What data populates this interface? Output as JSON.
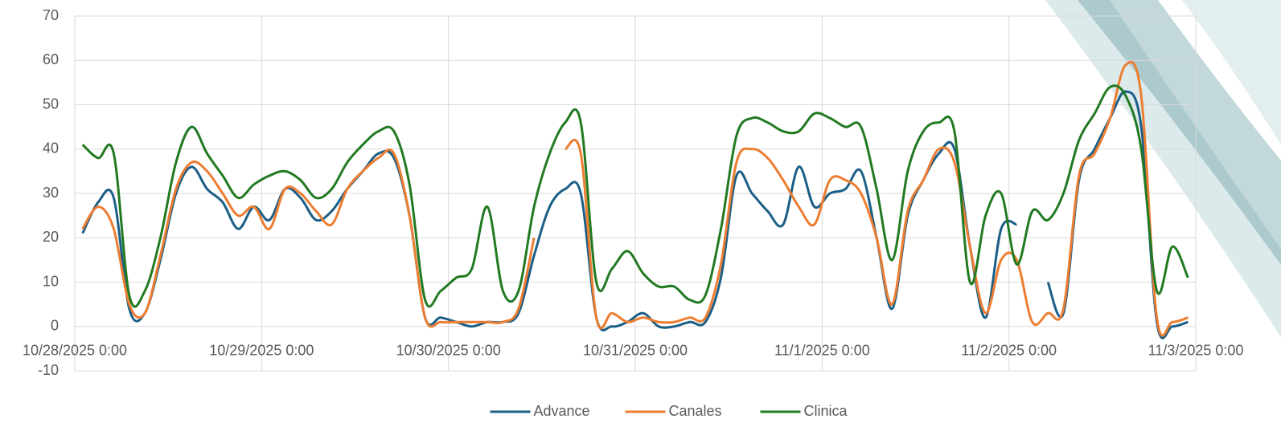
{
  "chart_data": {
    "type": "line",
    "x": [
      "10/28/2025 1:00",
      "10/28/2025 3:00",
      "10/28/2025 5:00",
      "10/28/2025 7:00",
      "10/28/2025 9:00",
      "10/28/2025 11:00",
      "10/28/2025 13:00",
      "10/28/2025 15:00",
      "10/28/2025 17:00",
      "10/28/2025 19:00",
      "10/28/2025 21:00",
      "10/28/2025 23:00",
      "10/29/2025 1:00",
      "10/29/2025 3:00",
      "10/29/2025 5:00",
      "10/29/2025 7:00",
      "10/29/2025 9:00",
      "10/29/2025 11:00",
      "10/29/2025 13:00",
      "10/29/2025 15:00",
      "10/29/2025 17:00",
      "10/29/2025 19:00",
      "10/29/2025 21:00",
      "10/29/2025 23:00",
      "10/30/2025 1:00",
      "10/30/2025 3:00",
      "10/30/2025 5:00",
      "10/30/2025 7:00",
      "10/30/2025 9:00",
      "10/30/2025 11:00",
      "10/30/2025 13:00",
      "10/30/2025 15:00",
      "10/30/2025 17:00",
      "10/30/2025 19:00",
      "10/30/2025 21:00",
      "10/30/2025 23:00",
      "10/31/2025 1:00",
      "10/31/2025 3:00",
      "10/31/2025 5:00",
      "10/31/2025 7:00",
      "10/31/2025 9:00",
      "10/31/2025 11:00",
      "10/31/2025 13:00",
      "10/31/2025 15:00",
      "10/31/2025 17:00",
      "10/31/2025 19:00",
      "10/31/2025 21:00",
      "10/31/2025 23:00",
      "11/1/2025 1:00",
      "11/1/2025 3:00",
      "11/1/2025 5:00",
      "11/1/2025 7:00",
      "11/1/2025 9:00",
      "11/1/2025 11:00",
      "11/1/2025 13:00",
      "11/1/2025 15:00",
      "11/1/2025 17:00",
      "11/1/2025 19:00",
      "11/1/2025 21:00",
      "11/1/2025 23:00",
      "11/2/2025 1:00",
      "11/2/2025 3:00",
      "11/2/2025 5:00",
      "11/2/2025 7:00",
      "11/2/2025 9:00",
      "11/2/2025 11:00",
      "11/2/2025 13:00",
      "11/2/2025 15:00",
      "11/2/2025 17:00",
      "11/2/2025 19:00",
      "11/2/2025 21:00",
      "11/2/2025 23:00"
    ],
    "series": [
      {
        "name": "Advance",
        "color": "#1b5e86",
        "values": [
          21,
          28,
          29,
          4,
          3,
          15,
          30,
          36,
          31,
          28,
          22,
          27,
          24,
          31,
          29,
          24,
          26,
          31,
          35,
          39,
          38,
          25,
          2,
          2,
          1,
          0,
          1,
          1,
          3,
          16,
          27,
          31,
          30,
          2,
          0,
          1,
          3,
          0,
          0,
          1,
          1,
          11,
          34,
          30,
          26,
          23,
          36,
          27,
          30,
          31,
          35,
          20,
          4,
          25,
          33,
          39,
          40,
          18,
          2,
          22,
          23,
          null,
          10,
          3,
          33,
          40,
          47,
          53,
          45,
          1,
          0,
          1
        ]
      },
      {
        "name": "Canales",
        "color": "#ed7d31",
        "values": [
          22,
          27,
          22,
          5,
          3,
          16,
          31,
          37,
          35,
          30,
          25,
          27,
          22,
          31,
          30,
          26,
          23,
          31,
          35,
          38,
          39,
          25,
          2,
          1,
          1,
          1,
          1,
          1,
          4,
          20,
          null,
          40,
          39,
          2,
          3,
          1,
          2,
          1,
          1,
          2,
          2,
          14,
          37,
          40,
          38,
          33,
          27,
          23,
          33,
          33,
          30,
          20,
          5,
          26,
          33,
          40,
          37,
          18,
          3,
          15,
          15,
          1,
          3,
          4,
          34,
          39,
          47,
          59,
          52,
          2,
          1,
          2
        ]
      },
      {
        "name": "Clinica",
        "color": "#217a21",
        "values": [
          41,
          38,
          39,
          7,
          8,
          20,
          37,
          45,
          39,
          34,
          29,
          32,
          34,
          35,
          33,
          29,
          31,
          37,
          41,
          44,
          44,
          32,
          6,
          8,
          11,
          13,
          27,
          8,
          8,
          27,
          39,
          46,
          46,
          10,
          13,
          17,
          12,
          9,
          9,
          6,
          7,
          22,
          43,
          47,
          46,
          44,
          44,
          48,
          47,
          45,
          45,
          31,
          15,
          35,
          44,
          46,
          44,
          10,
          25,
          30,
          14,
          26,
          24,
          30,
          42,
          48,
          54,
          52,
          40,
          8,
          18,
          11
        ]
      }
    ],
    "xlim": [
      "10/28/2025 0:00",
      "11/3/2025 0:00"
    ],
    "xticks": [
      "10/28/2025 0:00",
      "10/29/2025 0:00",
      "10/30/2025 0:00",
      "10/31/2025 0:00",
      "11/1/2025 0:00",
      "11/2/2025 0:00",
      "11/3/2025 0:00"
    ],
    "ylim": [
      -10,
      70
    ],
    "yticks": [
      -10,
      0,
      10,
      20,
      30,
      40,
      50,
      60,
      70
    ],
    "grid": true,
    "legend": "bottom"
  }
}
